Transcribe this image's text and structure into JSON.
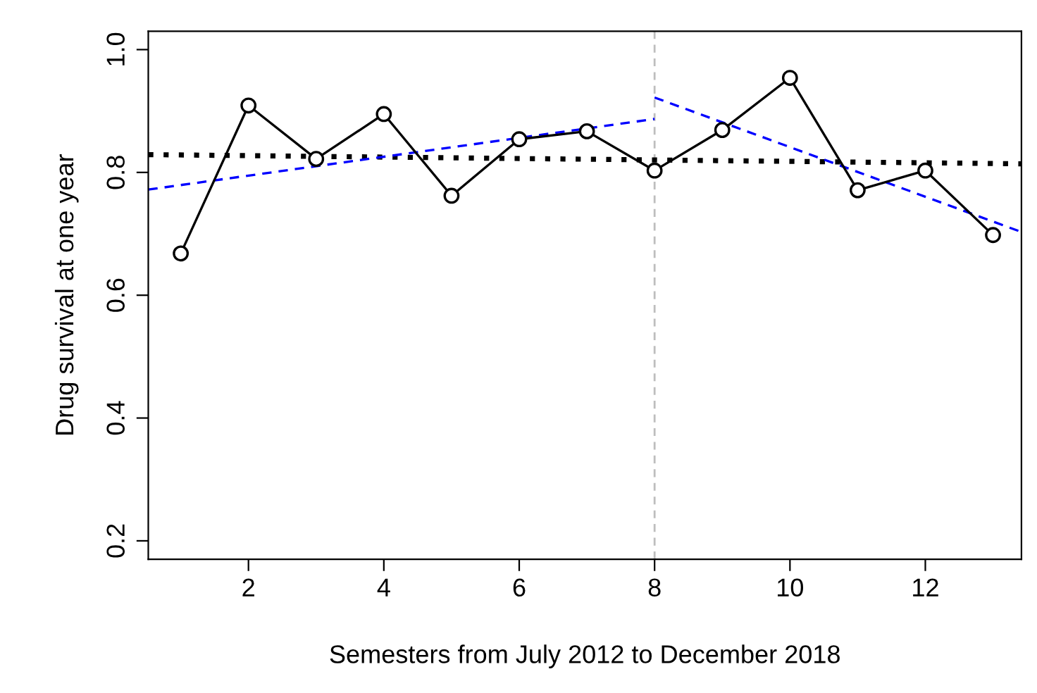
{
  "chart_data": {
    "type": "line",
    "xlabel": "Semesters from July 2012 to December 2018",
    "ylabel": "Drug survival at one year",
    "xlim": [
      0.52,
      13.42
    ],
    "ylim": [
      0.17,
      1.03
    ],
    "xticks": [
      2,
      4,
      6,
      8,
      10,
      12
    ],
    "yticks": [
      {
        "value": 0.2,
        "label": "0.2"
      },
      {
        "value": 0.4,
        "label": "0.4"
      },
      {
        "value": 0.6,
        "label": "0.6"
      },
      {
        "value": 0.8,
        "label": "0.8"
      },
      {
        "value": 1.0,
        "label": "1.0"
      }
    ],
    "grid": false,
    "legend": false,
    "series": [
      {
        "x": [
          1,
          2,
          3,
          4,
          5,
          6,
          7,
          8,
          9,
          10,
          11,
          12,
          13
        ],
        "values": [
          0.668,
          0.909,
          0.822,
          0.895,
          0.762,
          0.854,
          0.867,
          0.803,
          0.869,
          0.954,
          0.771,
          0.803,
          0.698
        ],
        "color": "#000000",
        "marker": "circle",
        "line_style": "solid"
      },
      {
        "x": [
          0.52,
          13.42
        ],
        "values": [
          0.829,
          0.814
        ],
        "color": "#000000",
        "marker": "none",
        "line_style": "dotted"
      },
      {
        "x": [
          0.52,
          8
        ],
        "values": [
          0.772,
          0.887
        ],
        "color": "#0000ff",
        "marker": "none",
        "line_style": "dashed"
      },
      {
        "x": [
          8,
          13.42
        ],
        "values": [
          0.922,
          0.703
        ],
        "color": "#0000ff",
        "marker": "none",
        "line_style": "dashed"
      }
    ],
    "ref_lines": [
      {
        "axis": "x",
        "value": 8,
        "color": "#bebebe",
        "line_style": "dashed"
      }
    ]
  }
}
